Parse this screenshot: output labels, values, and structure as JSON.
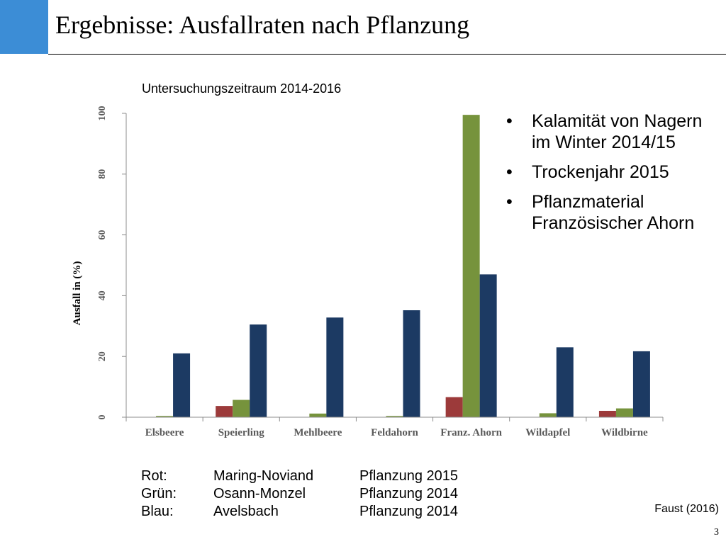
{
  "slide": {
    "title": "Ergebnisse: Ausfallraten nach Pflanzung",
    "page_number": "3",
    "source": "Faust (2016)",
    "notes": [
      "Kalamität von Nagern im Winter 2014/15",
      "Trockenjahr 2015",
      "Pflanzmaterial Französischer Ahorn"
    ],
    "legend_rows": [
      [
        "Rot:",
        "Maring-Noviand",
        "Pflanzung 2015"
      ],
      [
        "Grün:",
        "Osann-Monzel",
        "Pflanzung 2014"
      ],
      [
        "Blau:",
        "Avelsbach",
        "Pflanzung 2014"
      ]
    ]
  },
  "colors": {
    "accent": "#3c8dd6",
    "red": "#9c3a3a",
    "green": "#76933c",
    "blue": "#1c3a63"
  },
  "chart_data": {
    "type": "bar",
    "subtitle": "Untersuchungszeitraum 2014-2016",
    "ylabel": "Ausfall in (%)",
    "xlabel": "",
    "ylim": [
      0,
      100
    ],
    "yticks": [
      0,
      20,
      40,
      60,
      80,
      100
    ],
    "grid": false,
    "categories": [
      "Elsbeere",
      "Speierling",
      "Mehlbeere",
      "Feldahorn",
      "Franz. Ahorn",
      "Wildapfel",
      "Wildbirne"
    ],
    "series": [
      {
        "color": "#9c3a3a",
        "values": [
          0,
          3.7,
          0,
          0,
          6.6,
          0,
          2.1
        ]
      },
      {
        "color": "#76933c",
        "values": [
          0.4,
          5.7,
          1.2,
          0.4,
          99.5,
          1.3,
          2.9
        ]
      },
      {
        "color": "#1c3a63",
        "values": [
          21,
          30.5,
          32.8,
          35.2,
          47,
          23,
          21.7
        ]
      }
    ]
  }
}
